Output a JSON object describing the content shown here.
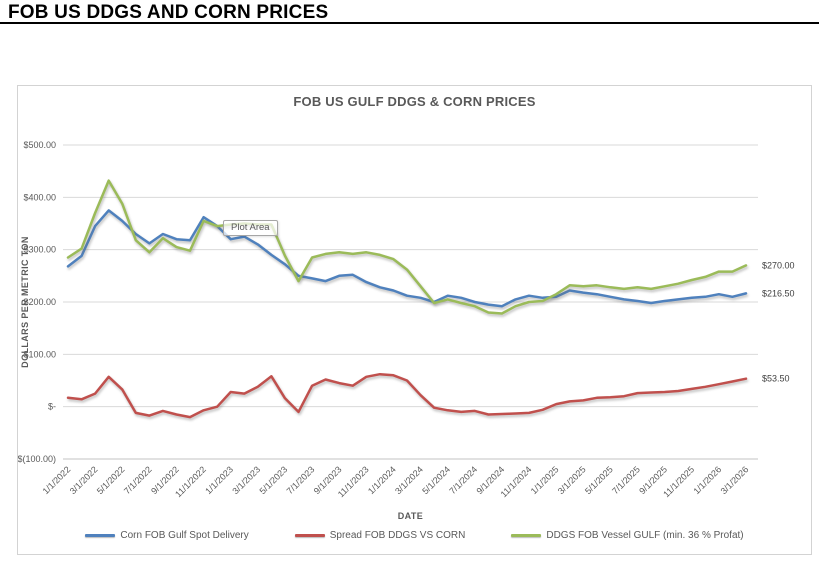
{
  "header": {
    "title": "FOB US DDGS AND CORN PRICES"
  },
  "chart": {
    "plot_area_tooltip": "Plot Area",
    "grid_color": "#d9d9d9",
    "text_color": "#595959"
  },
  "chart_data": {
    "type": "line",
    "title": "FOB US GULF DDGS & CORN PRICES",
    "xlabel": "DATE",
    "ylabel": "DOLLARS PER METRIC TON",
    "ylim": [
      -100,
      500
    ],
    "grid": true,
    "legend_position": "bottom",
    "y_ticks": [
      500,
      400,
      300,
      200,
      100,
      0,
      -100
    ],
    "y_tick_labels": [
      "$500.00",
      "$400.00",
      "$300.00",
      "$200.00",
      "$100.00",
      "$-",
      "$(100.00)"
    ],
    "x_tick_labels": [
      "1/1/2022",
      "3/1/2022",
      "5/1/2022",
      "7/1/2022",
      "9/1/2022",
      "11/1/2022",
      "1/1/2023",
      "3/1/2023",
      "5/1/2023",
      "7/1/2023",
      "9/1/2023",
      "11/1/2023",
      "1/1/2024",
      "3/1/2024",
      "5/1/2024",
      "7/1/2024",
      "9/1/2024",
      "11/1/2024",
      "1/1/2025",
      "3/1/2025",
      "5/1/2025",
      "7/1/2025",
      "9/1/2025",
      "11/1/2025",
      "1/1/2026",
      "3/1/2026"
    ],
    "x": [
      "1/1/2022",
      "2/1/2022",
      "3/1/2022",
      "4/1/2022",
      "5/1/2022",
      "6/1/2022",
      "7/1/2022",
      "8/1/2022",
      "9/1/2022",
      "10/1/2022",
      "11/1/2022",
      "12/1/2022",
      "1/1/2023",
      "2/1/2023",
      "3/1/2023",
      "4/1/2023",
      "5/1/2023",
      "6/1/2023",
      "7/1/2023",
      "8/1/2023",
      "9/1/2023",
      "10/1/2023",
      "11/1/2023",
      "12/1/2023",
      "1/1/2024",
      "2/1/2024",
      "3/1/2024",
      "4/1/2024",
      "5/1/2024",
      "6/1/2024",
      "7/1/2024",
      "8/1/2024",
      "9/1/2024",
      "10/1/2024",
      "11/1/2024",
      "12/1/2024",
      "1/1/2025",
      "2/1/2025",
      "3/1/2025",
      "4/1/2025",
      "5/1/2025",
      "6/1/2025",
      "7/1/2025",
      "8/1/2025",
      "9/1/2025",
      "10/1/2025",
      "11/1/2025",
      "12/1/2025",
      "1/1/2026",
      "2/1/2026",
      "3/1/2026"
    ],
    "series": [
      {
        "name": "Corn FOB Gulf Spot Delivery",
        "color": "#4F81BD",
        "end_label": "$216.50",
        "values": [
          268,
          288,
          345,
          375,
          355,
          330,
          312,
          330,
          320,
          318,
          362,
          345,
          320,
          325,
          310,
          290,
          272,
          250,
          245,
          240,
          250,
          252,
          238,
          228,
          222,
          212,
          208,
          200,
          212,
          208,
          200,
          195,
          192,
          205,
          212,
          208,
          210,
          222,
          218,
          215,
          210,
          205,
          202,
          198,
          202,
          205,
          208,
          210,
          215,
          210,
          216.5
        ]
      },
      {
        "name": "Spread FOB DDGS VS CORN",
        "color": "#C0504D",
        "end_label": "$53.50",
        "values": [
          17,
          14,
          25,
          57,
          33,
          -12,
          -17,
          -8,
          -15,
          -20,
          -7,
          0,
          28,
          25,
          38,
          58,
          16,
          -10,
          40,
          52,
          45,
          40,
          57,
          62,
          60,
          50,
          22,
          -2,
          -7,
          -10,
          -8,
          -15,
          -14,
          -13,
          -12,
          -6,
          5,
          10,
          12,
          17,
          18,
          20,
          26,
          27,
          28,
          30,
          34,
          38,
          43,
          48,
          53.5
        ]
      },
      {
        "name": "DDGS FOB Vessel GULF  (min. 36 % Profat)",
        "color": "#9BBB59",
        "end_label": "$270.00",
        "values": [
          285,
          302,
          370,
          432,
          388,
          318,
          295,
          322,
          305,
          298,
          355,
          345,
          348,
          350,
          348,
          348,
          288,
          240,
          285,
          292,
          295,
          292,
          295,
          290,
          282,
          262,
          230,
          198,
          205,
          198,
          192,
          180,
          178,
          192,
          200,
          202,
          215,
          232,
          230,
          232,
          228,
          225,
          228,
          225,
          230,
          235,
          242,
          248,
          258,
          258,
          270
        ]
      }
    ]
  }
}
